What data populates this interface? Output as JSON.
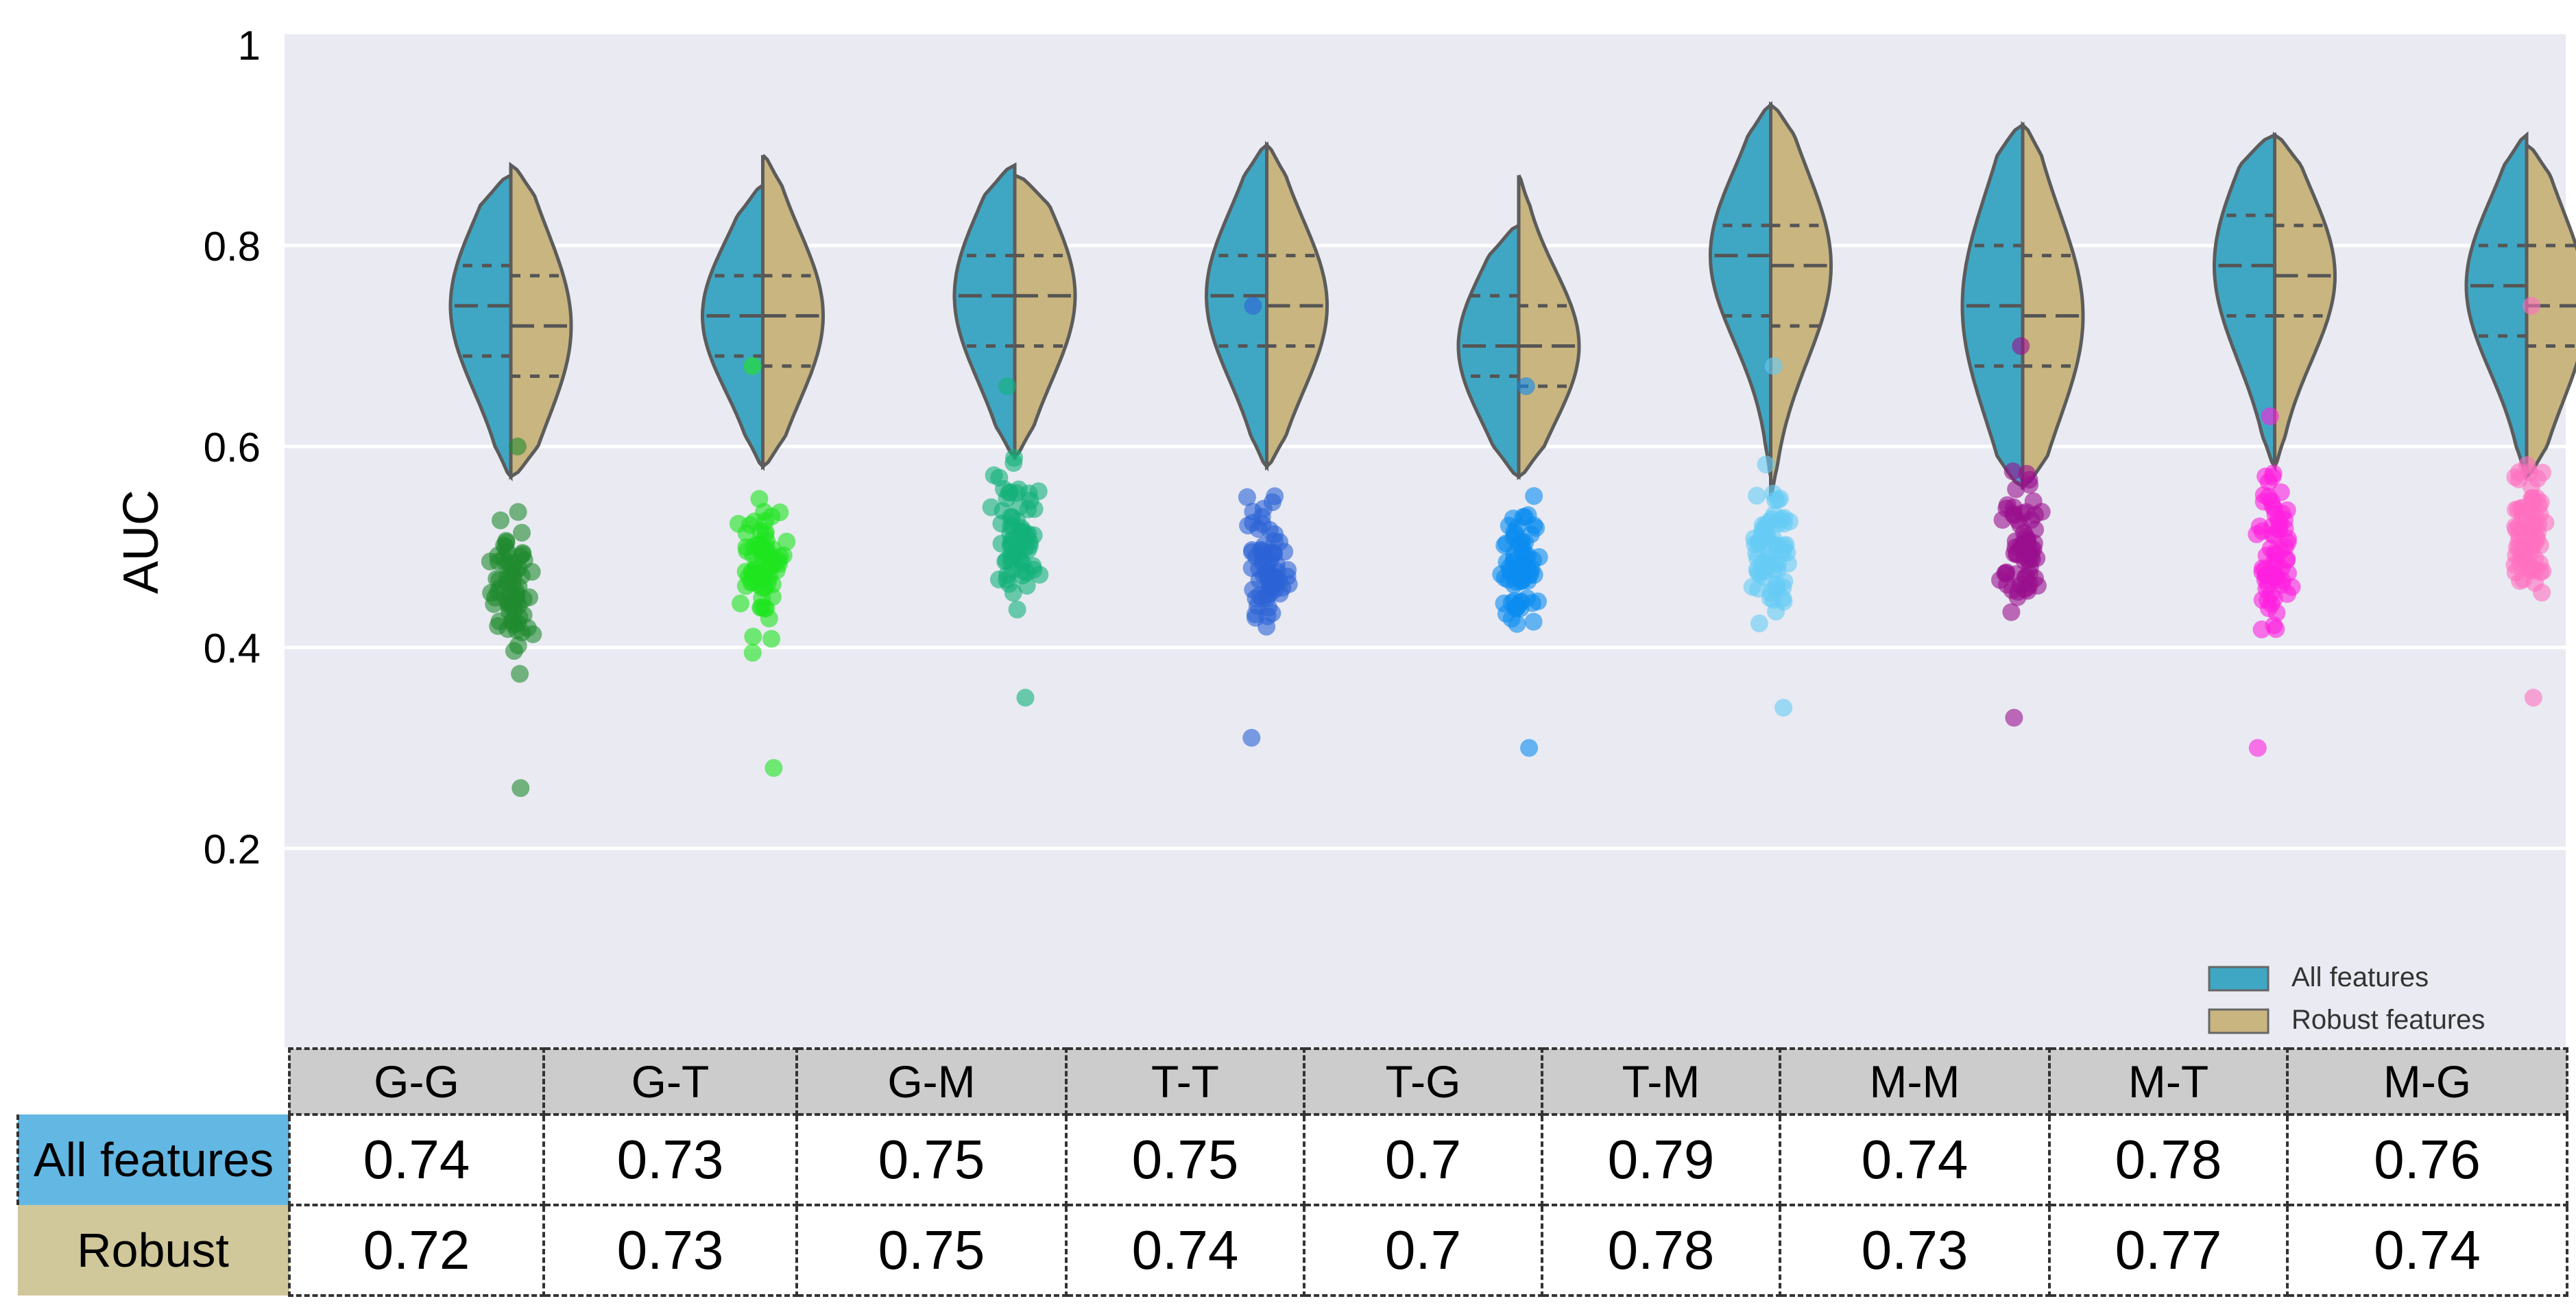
{
  "chart_data": {
    "type": "violin",
    "title": "",
    "ylabel": "AUC",
    "xlabel": "",
    "ylim": [
      0,
      1
    ],
    "yticks": [
      "0.2",
      "0.4",
      "0.6",
      "0.8",
      "1"
    ],
    "grid": true,
    "legend": {
      "position": "bottom-right",
      "entries": [
        {
          "label": "All features",
          "color": "#3fa7c4"
        },
        {
          "label": "Robust features",
          "color": "#c9b57f"
        }
      ]
    },
    "categories": [
      "G-G",
      "G-T",
      "G-M",
      "T-T",
      "T-G",
      "T-M",
      "M-M",
      "M-T",
      "M-G"
    ],
    "series": [
      {
        "name": "All features",
        "color": "#3fa7c4",
        "side": "left",
        "min": [
          0.57,
          0.58,
          0.59,
          0.58,
          0.57,
          0.57,
          0.56,
          0.58,
          0.57
        ],
        "max": [
          0.87,
          0.86,
          0.88,
          0.9,
          0.82,
          0.94,
          0.92,
          0.91,
          0.91
        ],
        "q1": [
          0.69,
          0.69,
          0.7,
          0.7,
          0.67,
          0.73,
          0.68,
          0.73,
          0.71
        ],
        "median": [
          0.74,
          0.73,
          0.75,
          0.75,
          0.7,
          0.79,
          0.74,
          0.78,
          0.76
        ],
        "q3": [
          0.78,
          0.77,
          0.79,
          0.79,
          0.75,
          0.82,
          0.8,
          0.83,
          0.8
        ]
      },
      {
        "name": "Robust features",
        "color": "#c9b57f",
        "side": "right",
        "min": [
          0.57,
          0.58,
          0.59,
          0.58,
          0.57,
          0.55,
          0.56,
          0.58,
          0.57
        ],
        "max": [
          0.88,
          0.89,
          0.87,
          0.9,
          0.87,
          0.94,
          0.92,
          0.91,
          0.9
        ],
        "q1": [
          0.67,
          0.68,
          0.7,
          0.7,
          0.66,
          0.72,
          0.68,
          0.73,
          0.7
        ],
        "median": [
          0.72,
          0.73,
          0.75,
          0.74,
          0.7,
          0.78,
          0.73,
          0.77,
          0.74
        ],
        "q3": [
          0.77,
          0.77,
          0.79,
          0.79,
          0.74,
          0.82,
          0.79,
          0.82,
          0.8
        ]
      }
    ],
    "random_points": {
      "colors": [
        "#1f8a2e",
        "#1ee51e",
        "#12b07a",
        "#2b63d6",
        "#0a8cf0",
        "#66ccf5",
        "#9a0f8e",
        "#ff1fe0",
        "#ff6fc0"
      ],
      "min": [
        0.26,
        0.28,
        0.35,
        0.31,
        0.3,
        0.34,
        0.33,
        0.3,
        0.35
      ],
      "max": [
        0.6,
        0.68,
        0.66,
        0.74,
        0.66,
        0.68,
        0.7,
        0.63,
        0.74
      ],
      "center": [
        0.46,
        0.48,
        0.52,
        0.48,
        0.47,
        0.5,
        0.5,
        0.5,
        0.52
      ],
      "count": 70
    }
  },
  "table": {
    "headers": [
      "G-G",
      "G-T",
      "G-M",
      "T-T",
      "T-G",
      "T-M",
      "M-M",
      "M-T",
      "M-G"
    ],
    "rows": [
      {
        "label": "All features",
        "values": [
          "0.74",
          "0.73",
          "0.75",
          "0.75",
          "0.7",
          "0.79",
          "0.74",
          "0.78",
          "0.76"
        ]
      },
      {
        "label": "Robust",
        "values": [
          "0.72",
          "0.73",
          "0.75",
          "0.74",
          "0.7",
          "0.78",
          "0.73",
          "0.77",
          "0.74"
        ]
      }
    ]
  }
}
